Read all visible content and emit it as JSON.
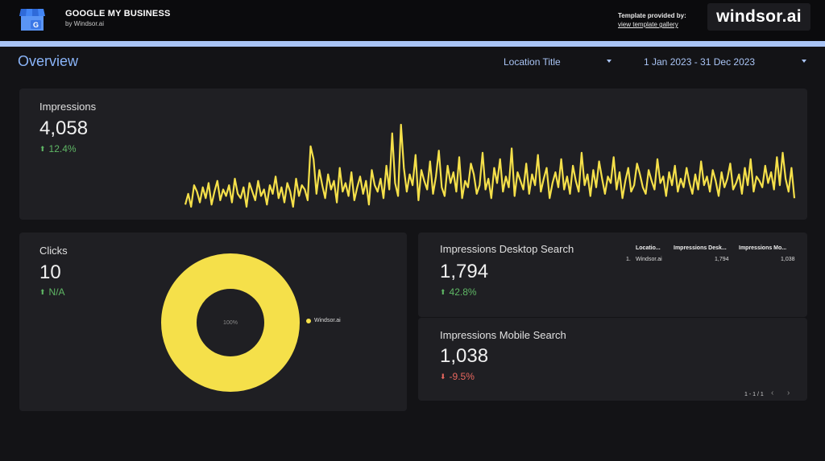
{
  "header": {
    "title": "GOOGLE MY BUSINESS",
    "subtitle": "by Windsor.ai",
    "template_label": "Template provided by:",
    "template_link": "view template gallery",
    "brand": "windsor.ai",
    "logo_icon": "google-my-business-store-icon"
  },
  "controls": {
    "page_title": "Overview",
    "location_dropdown": "Location Title",
    "date_dropdown": "1 Jan 2023 - 31 Dec 2023"
  },
  "colors": {
    "background": "#131316",
    "card": "#1f1f23",
    "accent_blue": "#8ab4f8",
    "series_yellow": "#f5e04a",
    "positive": "#5fb765",
    "negative": "#e8675f"
  },
  "impressions": {
    "label": "Impressions",
    "value": "4,058",
    "delta": "12.4%",
    "direction": "up"
  },
  "clicks": {
    "label": "Clicks",
    "value": "10",
    "delta": "N/A",
    "direction": "up",
    "donut_center": "100%",
    "legend": "Windsor.ai"
  },
  "desktop": {
    "label": "Impressions Desktop Search",
    "value": "1,794",
    "delta": "42.8%",
    "direction": "up"
  },
  "mobile": {
    "label": "Impressions Mobile Search",
    "value": "1,038",
    "delta": "-9.5%",
    "direction": "down"
  },
  "table": {
    "headers": [
      "Locatio...",
      "Impressions Desk...",
      "Impressions Mo..."
    ],
    "rows": [
      {
        "index": "1.",
        "location": "Windsor.ai",
        "desktop": "1,794",
        "mobile": "1,038"
      }
    ],
    "pagination": "1 - 1 / 1"
  },
  "chart_data": [
    {
      "type": "line",
      "series": [
        {
          "values": [
            3,
            8,
            2,
            12,
            9,
            4,
            11,
            6,
            13,
            3,
            9,
            14,
            5,
            10,
            7,
            12,
            4,
            15,
            8,
            6,
            11,
            2,
            13,
            9,
            5,
            14,
            7,
            10,
            3,
            12,
            8,
            16,
            6,
            11,
            4,
            13,
            9,
            2,
            15,
            7,
            12,
            10,
            5,
            30,
            24,
            8,
            19,
            12,
            6,
            17,
            10,
            14,
            4,
            20,
            9,
            13,
            7,
            18,
            5,
            11,
            16,
            8,
            14,
            3,
            19,
            12,
            9,
            15,
            6,
            21,
            10,
            36,
            13,
            7,
            40,
            20,
            9,
            17,
            12,
            26,
            5,
            19,
            14,
            10,
            23,
            8,
            16,
            28,
            11,
            7,
            21,
            13,
            18,
            9,
            25,
            6,
            14,
            11,
            22,
            17,
            8,
            12,
            27,
            10,
            15,
            6,
            20,
            13,
            24,
            9,
            16,
            11,
            29,
            7,
            18,
            14,
            10,
            22,
            8,
            17,
            12,
            26,
            9,
            15,
            20,
            6,
            13,
            18,
            11,
            24,
            10,
            16,
            8,
            21,
            14,
            9,
            27,
            12,
            17,
            7,
            19,
            11,
            23,
            15,
            8,
            16,
            13,
            25,
            10,
            18,
            6,
            14,
            20,
            9,
            12,
            22,
            17,
            11,
            8,
            19,
            14,
            10,
            24,
            13,
            16,
            7,
            18,
            12,
            21,
            9,
            15,
            11,
            20,
            13,
            8,
            17,
            10,
            23,
            12,
            16,
            9,
            19,
            14,
            7,
            18,
            11,
            15,
            22,
            10,
            13,
            17,
            8,
            20,
            12,
            24,
            9,
            16,
            14,
            11,
            21,
            13,
            18,
            10,
            25,
            12,
            27,
            15,
            9,
            20,
            6
          ]
        }
      ]
    },
    {
      "type": "pie",
      "categories": [
        "Windsor.ai"
      ],
      "values": [
        100
      ]
    }
  ]
}
